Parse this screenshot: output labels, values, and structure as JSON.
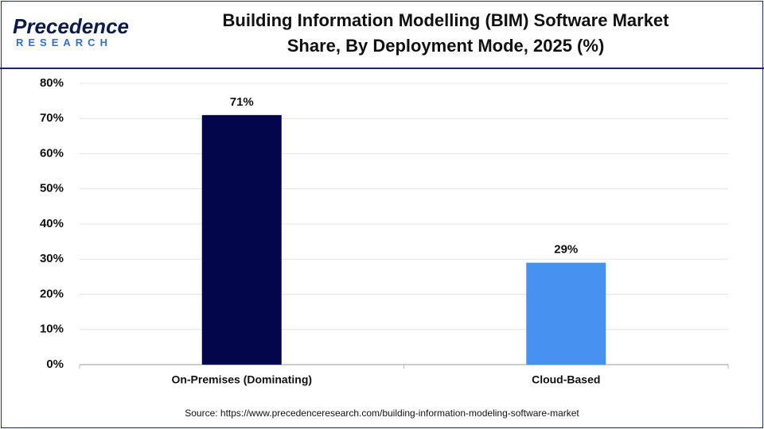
{
  "logo": {
    "name": "Precedence",
    "tagline": "RESEARCH"
  },
  "chart_data": {
    "type": "bar",
    "title": "Building Information Modelling (BIM) Software Market Share, By Deployment Mode, 2025 (%)",
    "categories": [
      "On-Premises (Dominating)",
      "Cloud-Based"
    ],
    "values": [
      71,
      29
    ],
    "value_labels": [
      "71%",
      "29%"
    ],
    "colors": [
      "#03064a",
      "#4792f0"
    ],
    "ylim": [
      0,
      80
    ],
    "yticks": [
      {
        "value": 0,
        "label": "0%"
      },
      {
        "value": 10,
        "label": "10%"
      },
      {
        "value": 20,
        "label": "20%"
      },
      {
        "value": 30,
        "label": "30%"
      },
      {
        "value": 40,
        "label": "40%"
      },
      {
        "value": 50,
        "label": "50%"
      },
      {
        "value": 60,
        "label": "60%"
      },
      {
        "value": 70,
        "label": "70%"
      },
      {
        "value": 80,
        "label": "80%"
      }
    ],
    "grid": true,
    "source": "Source: https://www.precedenceresearch.com/building-information-modeling-software-market"
  }
}
